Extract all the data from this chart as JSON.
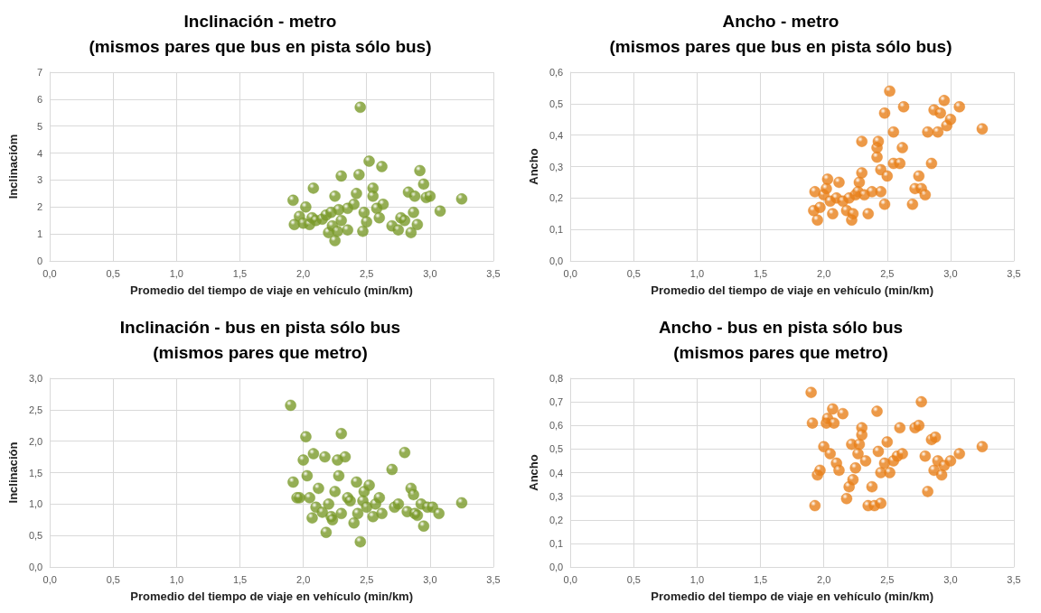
{
  "chart_data": [
    {
      "type": "scatter",
      "title": "Inclinación - metro\n(mismos pares que bus en pista sólo bus)",
      "xlabel": "Promedio del tiempo de viaje en vehículo (min/km)",
      "ylabel": "Inclinacióm",
      "marker": "circle",
      "grid": true,
      "xlim": [
        0,
        3.5
      ],
      "xticks": [
        {
          "value": 0,
          "label": "0,0"
        },
        {
          "value": 0.5,
          "label": "0,5"
        },
        {
          "value": 1,
          "label": "1,0"
        },
        {
          "value": 1.5,
          "label": "1,5"
        },
        {
          "value": 2,
          "label": "2,0"
        },
        {
          "value": 2.5,
          "label": "2,5"
        },
        {
          "value": 3,
          "label": "3,0"
        },
        {
          "value": 3.5,
          "label": "3,5"
        }
      ],
      "ylim": [
        0,
        7
      ],
      "yticks": [
        0,
        1,
        2,
        3,
        4,
        5,
        6,
        7
      ],
      "series": [
        {
          "color": "#7a9a2a",
          "x": [
            1.92,
            1.93,
            1.97,
            2.0,
            2.02,
            2.05,
            2.07,
            2.08,
            2.1,
            2.15,
            2.18,
            2.2,
            2.22,
            2.23,
            2.25,
            2.25,
            2.27,
            2.28,
            2.3,
            2.3,
            2.35,
            2.35,
            2.4,
            2.42,
            2.44,
            2.45,
            2.47,
            2.48,
            2.5,
            2.52,
            2.55,
            2.55,
            2.58,
            2.62,
            2.6,
            2.63,
            2.7,
            2.75,
            2.77,
            2.8,
            2.83,
            2.85,
            2.87,
            2.88,
            2.9,
            2.92,
            2.95,
            2.97,
            3.0,
            3.08,
            3.25
          ],
          "values": [
            2.25,
            1.35,
            1.65,
            1.4,
            2.0,
            1.35,
            1.6,
            2.7,
            1.5,
            1.55,
            1.7,
            1.05,
            1.8,
            1.3,
            0.75,
            2.4,
            1.1,
            1.9,
            3.15,
            1.5,
            1.15,
            1.95,
            2.1,
            2.5,
            3.2,
            5.7,
            1.1,
            1.8,
            1.45,
            3.7,
            2.7,
            2.4,
            1.95,
            3.5,
            1.6,
            2.1,
            1.3,
            1.15,
            1.6,
            1.5,
            2.55,
            1.05,
            1.8,
            2.4,
            1.35,
            3.35,
            2.85,
            2.35,
            2.4,
            1.85,
            2.3
          ]
        }
      ]
    },
    {
      "type": "scatter",
      "title": "Ancho - metro\n(mismos pares que bus en pista sólo bus)",
      "xlabel": "Promedio del tiempo de viaje en vehículo (min/km)",
      "ylabel": "Ancho",
      "marker": "circle",
      "grid": true,
      "xlim": [
        0,
        3.5
      ],
      "xticks": [
        {
          "value": 0,
          "label": "0,0"
        },
        {
          "value": 0.5,
          "label": "0,5"
        },
        {
          "value": 1,
          "label": "1,0"
        },
        {
          "value": 1.5,
          "label": "1,5"
        },
        {
          "value": 2,
          "label": "2,0"
        },
        {
          "value": 2.5,
          "label": "2,5"
        },
        {
          "value": 3,
          "label": "3,0"
        },
        {
          "value": 3.5,
          "label": "3,5"
        }
      ],
      "ylim": [
        0,
        0.6
      ],
      "yticks": [
        {
          "value": 0,
          "label": "0,0"
        },
        {
          "value": 0.1,
          "label": "0,1"
        },
        {
          "value": 0.2,
          "label": "0,2"
        },
        {
          "value": 0.3,
          "label": "0,3"
        },
        {
          "value": 0.4,
          "label": "0,4"
        },
        {
          "value": 0.5,
          "label": "0,5"
        },
        {
          "value": 0.6,
          "label": "0,6"
        }
      ],
      "series": [
        {
          "color": "#e8801a",
          "x": [
            1.92,
            1.93,
            1.95,
            1.97,
            2.0,
            2.02,
            2.03,
            2.05,
            2.07,
            2.1,
            2.12,
            2.15,
            2.18,
            2.2,
            2.22,
            2.23,
            2.25,
            2.27,
            2.28,
            2.3,
            2.3,
            2.32,
            2.35,
            2.38,
            2.42,
            2.42,
            2.43,
            2.45,
            2.45,
            2.48,
            2.48,
            2.5,
            2.52,
            2.55,
            2.55,
            2.6,
            2.62,
            2.63,
            2.7,
            2.72,
            2.75,
            2.77,
            2.8,
            2.82,
            2.85,
            2.87,
            2.9,
            2.92,
            2.95,
            2.97,
            3.0,
            3.07,
            3.25
          ],
          "values": [
            0.16,
            0.22,
            0.13,
            0.17,
            0.21,
            0.23,
            0.26,
            0.19,
            0.15,
            0.2,
            0.25,
            0.19,
            0.16,
            0.2,
            0.13,
            0.15,
            0.21,
            0.22,
            0.25,
            0.28,
            0.38,
            0.21,
            0.15,
            0.22,
            0.33,
            0.36,
            0.38,
            0.22,
            0.29,
            0.18,
            0.47,
            0.27,
            0.54,
            0.41,
            0.31,
            0.31,
            0.36,
            0.49,
            0.18,
            0.23,
            0.27,
            0.23,
            0.21,
            0.41,
            0.31,
            0.48,
            0.41,
            0.47,
            0.51,
            0.43,
            0.45,
            0.49,
            0.42
          ]
        }
      ]
    },
    {
      "type": "scatter",
      "title": "Inclinación - bus en pista sólo bus\n(mismos pares que metro)",
      "xlabel": "Promedio del tiempo de viaje en vehículo (min/km)",
      "ylabel": "Inclinación",
      "marker": "circle",
      "grid": true,
      "xlim": [
        0,
        3.5
      ],
      "xticks": [
        {
          "value": 0,
          "label": "0,0"
        },
        {
          "value": 0.5,
          "label": "0,5"
        },
        {
          "value": 1,
          "label": "1,0"
        },
        {
          "value": 1.5,
          "label": "1,5"
        },
        {
          "value": 2,
          "label": "2,0"
        },
        {
          "value": 2.5,
          "label": "2,5"
        },
        {
          "value": 3,
          "label": "3,0"
        },
        {
          "value": 3.5,
          "label": "3,5"
        }
      ],
      "ylim": [
        0,
        3
      ],
      "yticks": [
        {
          "value": 0,
          "label": "0,0"
        },
        {
          "value": 0.5,
          "label": "0,5"
        },
        {
          "value": 1,
          "label": "1,0"
        },
        {
          "value": 1.5,
          "label": "1,5"
        },
        {
          "value": 2,
          "label": "2,0"
        },
        {
          "value": 2.5,
          "label": "2,5"
        },
        {
          "value": 3,
          "label": "3,0"
        }
      ],
      "series": [
        {
          "color": "#7a9a2a",
          "x": [
            1.9,
            1.92,
            1.95,
            1.97,
            2.0,
            2.02,
            2.03,
            2.05,
            2.07,
            2.08,
            2.1,
            2.12,
            2.15,
            2.17,
            2.18,
            2.2,
            2.22,
            2.23,
            2.25,
            2.27,
            2.28,
            2.3,
            2.3,
            2.33,
            2.35,
            2.37,
            2.4,
            2.42,
            2.43,
            2.45,
            2.47,
            2.48,
            2.5,
            2.52,
            2.55,
            2.57,
            2.6,
            2.62,
            2.7,
            2.72,
            2.75,
            2.8,
            2.82,
            2.85,
            2.87,
            2.88,
            2.9,
            2.93,
            2.95,
            2.98,
            3.02,
            3.07,
            3.25
          ],
          "values": [
            2.57,
            1.35,
            1.1,
            1.1,
            1.7,
            2.07,
            1.45,
            1.1,
            0.78,
            1.8,
            0.95,
            1.25,
            0.87,
            1.75,
            0.55,
            1.0,
            0.8,
            0.75,
            1.2,
            1.7,
            1.45,
            2.12,
            0.85,
            1.75,
            1.1,
            1.05,
            0.7,
            1.35,
            0.85,
            0.4,
            1.05,
            1.2,
            0.95,
            1.3,
            0.8,
            1.0,
            1.1,
            0.85,
            1.55,
            0.95,
            1.0,
            1.82,
            0.88,
            1.25,
            1.15,
            0.85,
            0.82,
            1.0,
            0.65,
            0.95,
            0.95,
            0.85,
            1.02
          ]
        }
      ]
    },
    {
      "type": "scatter",
      "title": "Ancho - bus en pista sólo bus\n(mismos pares que metro)",
      "xlabel": "Promedio del tiempo de viaje en vehículo (min/km)",
      "ylabel": "Ancho",
      "marker": "circle",
      "grid": true,
      "xlim": [
        0,
        3.5
      ],
      "xticks": [
        {
          "value": 0,
          "label": "0,0"
        },
        {
          "value": 0.5,
          "label": "0,5"
        },
        {
          "value": 1,
          "label": "1,0"
        },
        {
          "value": 1.5,
          "label": "1,5"
        },
        {
          "value": 2,
          "label": "2,0"
        },
        {
          "value": 2.5,
          "label": "2,5"
        },
        {
          "value": 3,
          "label": "3,0"
        },
        {
          "value": 3.5,
          "label": "3,5"
        }
      ],
      "ylim": [
        0,
        0.8
      ],
      "yticks": [
        {
          "value": 0,
          "label": "0,0"
        },
        {
          "value": 0.1,
          "label": "0,1"
        },
        {
          "value": 0.2,
          "label": "0,2"
        },
        {
          "value": 0.3,
          "label": "0,3"
        },
        {
          "value": 0.4,
          "label": "0,4"
        },
        {
          "value": 0.5,
          "label": "0,5"
        },
        {
          "value": 0.6,
          "label": "0,6"
        },
        {
          "value": 0.7,
          "label": "0,7"
        },
        {
          "value": 0.8,
          "label": "0,8"
        }
      ],
      "series": [
        {
          "color": "#e8801a",
          "x": [
            1.9,
            1.91,
            1.93,
            1.95,
            1.97,
            2.0,
            2.02,
            2.03,
            2.05,
            2.07,
            2.08,
            2.1,
            2.12,
            2.15,
            2.18,
            2.2,
            2.22,
            2.23,
            2.25,
            2.27,
            2.28,
            2.3,
            2.3,
            2.33,
            2.35,
            2.38,
            2.4,
            2.42,
            2.43,
            2.45,
            2.45,
            2.48,
            2.5,
            2.52,
            2.55,
            2.58,
            2.6,
            2.62,
            2.72,
            2.75,
            2.77,
            2.8,
            2.82,
            2.85,
            2.87,
            2.88,
            2.9,
            2.93,
            2.95,
            3.0,
            3.07,
            3.25
          ],
          "values": [
            0.74,
            0.61,
            0.26,
            0.39,
            0.41,
            0.51,
            0.61,
            0.63,
            0.48,
            0.67,
            0.61,
            0.44,
            0.41,
            0.65,
            0.29,
            0.34,
            0.52,
            0.37,
            0.42,
            0.48,
            0.52,
            0.59,
            0.56,
            0.45,
            0.26,
            0.34,
            0.26,
            0.66,
            0.49,
            0.27,
            0.4,
            0.44,
            0.53,
            0.4,
            0.45,
            0.47,
            0.59,
            0.48,
            0.59,
            0.6,
            0.7,
            0.47,
            0.32,
            0.54,
            0.41,
            0.55,
            0.45,
            0.39,
            0.43,
            0.45,
            0.48,
            0.51
          ]
        }
      ]
    }
  ]
}
